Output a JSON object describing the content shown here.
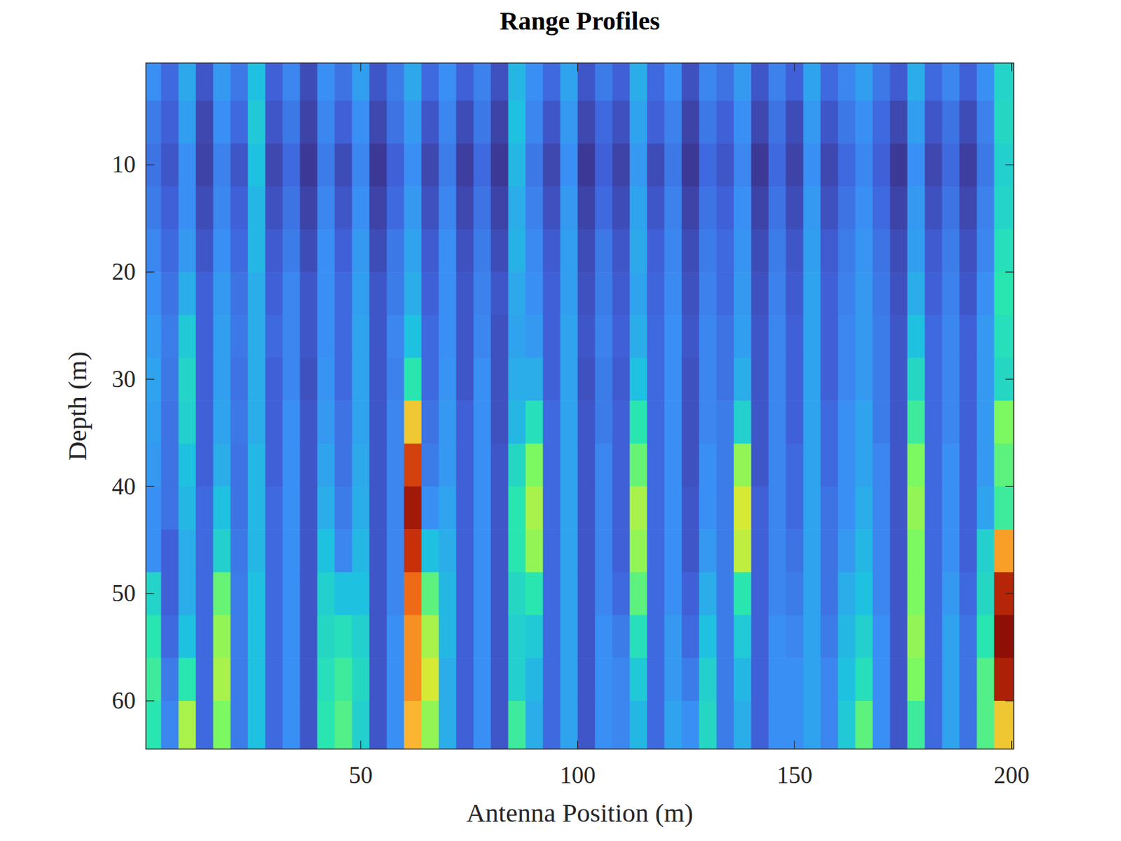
{
  "chart_data": {
    "type": "heatmap",
    "title": "Range Profiles",
    "x_label": "Antenna Position (m)",
    "y_label": "Depth (m)",
    "color": "turbo",
    "xlim": [
      0.5,
      200.5
    ],
    "ylim": [
      0.5,
      64.5
    ],
    "xticks": [
      50,
      100,
      150,
      200
    ],
    "yticks": [
      10,
      20,
      30,
      40,
      50,
      60
    ],
    "clim": [
      0,
      1
    ],
    "x": [
      2,
      6,
      10,
      14,
      18,
      22,
      26,
      30,
      34,
      38,
      42,
      46,
      50,
      54,
      58,
      62,
      66,
      70,
      74,
      78,
      82,
      86,
      90,
      94,
      98,
      102,
      106,
      110,
      114,
      118,
      122,
      126,
      130,
      134,
      138,
      142,
      146,
      150,
      154,
      158,
      162,
      166,
      170,
      174,
      178,
      182,
      186,
      190,
      194,
      198
    ],
    "y": [
      2,
      6,
      10,
      14,
      18,
      22,
      26,
      30,
      34,
      38,
      42,
      46,
      50,
      54,
      58,
      62
    ],
    "cells": [
      [
        0.3,
        0.22,
        0.35,
        0.18,
        0.32,
        0.25,
        0.4,
        0.2,
        0.28,
        0.16,
        0.3,
        0.24,
        0.33,
        0.18,
        0.26,
        0.35,
        0.22,
        0.3,
        0.2,
        0.27,
        0.17,
        0.38,
        0.3,
        0.22,
        0.34,
        0.18,
        0.26,
        0.2,
        0.36,
        0.22,
        0.3,
        0.17,
        0.28,
        0.24,
        0.32,
        0.18,
        0.27,
        0.2,
        0.34,
        0.22,
        0.28,
        0.33,
        0.25,
        0.19,
        0.36,
        0.22,
        0.28,
        0.2,
        0.3,
        0.45
      ],
      [
        0.26,
        0.2,
        0.33,
        0.15,
        0.3,
        0.22,
        0.42,
        0.18,
        0.25,
        0.14,
        0.28,
        0.2,
        0.3,
        0.15,
        0.24,
        0.32,
        0.18,
        0.28,
        0.16,
        0.25,
        0.14,
        0.4,
        0.28,
        0.18,
        0.32,
        0.15,
        0.22,
        0.17,
        0.34,
        0.2,
        0.27,
        0.14,
        0.25,
        0.2,
        0.3,
        0.15,
        0.24,
        0.16,
        0.32,
        0.18,
        0.25,
        0.3,
        0.22,
        0.15,
        0.33,
        0.18,
        0.24,
        0.16,
        0.27,
        0.46
      ],
      [
        0.24,
        0.18,
        0.3,
        0.14,
        0.27,
        0.18,
        0.4,
        0.15,
        0.22,
        0.12,
        0.26,
        0.16,
        0.28,
        0.12,
        0.2,
        0.3,
        0.15,
        0.26,
        0.13,
        0.22,
        0.12,
        0.38,
        0.25,
        0.15,
        0.3,
        0.12,
        0.2,
        0.14,
        0.32,
        0.16,
        0.25,
        0.12,
        0.22,
        0.18,
        0.28,
        0.12,
        0.22,
        0.14,
        0.3,
        0.15,
        0.22,
        0.28,
        0.2,
        0.12,
        0.3,
        0.15,
        0.22,
        0.13,
        0.25,
        0.44
      ],
      [
        0.26,
        0.2,
        0.3,
        0.16,
        0.28,
        0.2,
        0.38,
        0.17,
        0.24,
        0.14,
        0.28,
        0.18,
        0.3,
        0.14,
        0.22,
        0.32,
        0.17,
        0.28,
        0.15,
        0.24,
        0.14,
        0.36,
        0.27,
        0.17,
        0.32,
        0.14,
        0.22,
        0.16,
        0.34,
        0.18,
        0.27,
        0.14,
        0.24,
        0.2,
        0.3,
        0.14,
        0.24,
        0.16,
        0.32,
        0.17,
        0.24,
        0.3,
        0.22,
        0.14,
        0.32,
        0.17,
        0.24,
        0.15,
        0.27,
        0.45
      ],
      [
        0.28,
        0.22,
        0.32,
        0.18,
        0.3,
        0.22,
        0.38,
        0.19,
        0.26,
        0.16,
        0.3,
        0.2,
        0.32,
        0.16,
        0.25,
        0.34,
        0.19,
        0.3,
        0.17,
        0.26,
        0.16,
        0.37,
        0.29,
        0.19,
        0.33,
        0.16,
        0.25,
        0.18,
        0.35,
        0.2,
        0.28,
        0.16,
        0.26,
        0.22,
        0.31,
        0.16,
        0.26,
        0.18,
        0.33,
        0.19,
        0.26,
        0.31,
        0.24,
        0.16,
        0.33,
        0.19,
        0.26,
        0.17,
        0.28,
        0.48
      ],
      [
        0.3,
        0.24,
        0.36,
        0.2,
        0.32,
        0.24,
        0.36,
        0.2,
        0.28,
        0.18,
        0.3,
        0.22,
        0.33,
        0.18,
        0.26,
        0.36,
        0.2,
        0.3,
        0.18,
        0.27,
        0.18,
        0.35,
        0.3,
        0.2,
        0.33,
        0.17,
        0.26,
        0.19,
        0.34,
        0.21,
        0.29,
        0.17,
        0.27,
        0.22,
        0.32,
        0.17,
        0.27,
        0.19,
        0.34,
        0.2,
        0.27,
        0.32,
        0.25,
        0.17,
        0.36,
        0.2,
        0.27,
        0.18,
        0.3,
        0.5
      ],
      [
        0.32,
        0.26,
        0.42,
        0.2,
        0.33,
        0.25,
        0.36,
        0.22,
        0.28,
        0.18,
        0.3,
        0.22,
        0.34,
        0.18,
        0.28,
        0.4,
        0.22,
        0.3,
        0.18,
        0.28,
        0.17,
        0.34,
        0.32,
        0.2,
        0.34,
        0.18,
        0.27,
        0.2,
        0.36,
        0.22,
        0.3,
        0.18,
        0.28,
        0.24,
        0.33,
        0.18,
        0.28,
        0.2,
        0.34,
        0.2,
        0.28,
        0.32,
        0.26,
        0.18,
        0.4,
        0.22,
        0.28,
        0.2,
        0.32,
        0.48
      ],
      [
        0.34,
        0.25,
        0.45,
        0.2,
        0.33,
        0.24,
        0.36,
        0.2,
        0.28,
        0.17,
        0.31,
        0.22,
        0.34,
        0.18,
        0.27,
        0.5,
        0.22,
        0.31,
        0.18,
        0.3,
        0.17,
        0.36,
        0.36,
        0.2,
        0.34,
        0.17,
        0.26,
        0.19,
        0.4,
        0.22,
        0.3,
        0.17,
        0.28,
        0.24,
        0.36,
        0.18,
        0.28,
        0.2,
        0.34,
        0.2,
        0.28,
        0.32,
        0.26,
        0.18,
        0.46,
        0.22,
        0.28,
        0.2,
        0.32,
        0.46
      ],
      [
        0.33,
        0.24,
        0.44,
        0.2,
        0.34,
        0.25,
        0.36,
        0.2,
        0.3,
        0.18,
        0.32,
        0.24,
        0.34,
        0.18,
        0.28,
        0.72,
        0.24,
        0.32,
        0.2,
        0.3,
        0.17,
        0.38,
        0.48,
        0.22,
        0.34,
        0.18,
        0.26,
        0.2,
        0.5,
        0.22,
        0.3,
        0.17,
        0.28,
        0.26,
        0.44,
        0.18,
        0.28,
        0.2,
        0.34,
        0.22,
        0.3,
        0.34,
        0.26,
        0.18,
        0.52,
        0.22,
        0.28,
        0.2,
        0.32,
        0.58
      ],
      [
        0.32,
        0.24,
        0.4,
        0.2,
        0.36,
        0.24,
        0.38,
        0.2,
        0.3,
        0.18,
        0.34,
        0.24,
        0.35,
        0.18,
        0.28,
        0.9,
        0.26,
        0.32,
        0.2,
        0.3,
        0.18,
        0.46,
        0.58,
        0.22,
        0.34,
        0.18,
        0.28,
        0.2,
        0.56,
        0.22,
        0.3,
        0.17,
        0.3,
        0.26,
        0.6,
        0.18,
        0.28,
        0.22,
        0.34,
        0.22,
        0.3,
        0.34,
        0.28,
        0.18,
        0.58,
        0.22,
        0.3,
        0.2,
        0.32,
        0.55
      ],
      [
        0.3,
        0.24,
        0.38,
        0.22,
        0.4,
        0.24,
        0.38,
        0.22,
        0.3,
        0.18,
        0.36,
        0.26,
        0.36,
        0.18,
        0.28,
        0.96,
        0.3,
        0.34,
        0.2,
        0.3,
        0.18,
        0.5,
        0.62,
        0.22,
        0.34,
        0.18,
        0.28,
        0.2,
        0.62,
        0.22,
        0.3,
        0.18,
        0.3,
        0.26,
        0.66,
        0.2,
        0.28,
        0.22,
        0.34,
        0.24,
        0.3,
        0.36,
        0.28,
        0.18,
        0.6,
        0.22,
        0.3,
        0.2,
        0.34,
        0.52
      ],
      [
        0.3,
        0.2,
        0.36,
        0.22,
        0.44,
        0.25,
        0.38,
        0.22,
        0.3,
        0.18,
        0.4,
        0.28,
        0.38,
        0.18,
        0.28,
        0.92,
        0.4,
        0.36,
        0.2,
        0.3,
        0.18,
        0.5,
        0.6,
        0.22,
        0.34,
        0.18,
        0.28,
        0.2,
        0.6,
        0.22,
        0.3,
        0.18,
        0.32,
        0.26,
        0.64,
        0.2,
        0.28,
        0.24,
        0.34,
        0.24,
        0.32,
        0.38,
        0.28,
        0.18,
        0.58,
        0.22,
        0.3,
        0.2,
        0.44,
        0.78
      ],
      [
        0.45,
        0.2,
        0.36,
        0.22,
        0.56,
        0.26,
        0.4,
        0.22,
        0.3,
        0.18,
        0.44,
        0.4,
        0.4,
        0.18,
        0.28,
        0.85,
        0.55,
        0.38,
        0.2,
        0.3,
        0.18,
        0.46,
        0.5,
        0.22,
        0.34,
        0.18,
        0.28,
        0.22,
        0.55,
        0.22,
        0.3,
        0.2,
        0.36,
        0.26,
        0.5,
        0.2,
        0.28,
        0.26,
        0.34,
        0.24,
        0.36,
        0.4,
        0.28,
        0.18,
        0.58,
        0.22,
        0.32,
        0.22,
        0.46,
        0.94
      ],
      [
        0.5,
        0.22,
        0.4,
        0.22,
        0.6,
        0.26,
        0.4,
        0.22,
        0.3,
        0.18,
        0.46,
        0.48,
        0.44,
        0.18,
        0.3,
        0.8,
        0.62,
        0.38,
        0.2,
        0.3,
        0.18,
        0.44,
        0.42,
        0.22,
        0.34,
        0.18,
        0.3,
        0.26,
        0.48,
        0.22,
        0.32,
        0.22,
        0.4,
        0.26,
        0.42,
        0.2,
        0.3,
        0.28,
        0.34,
        0.26,
        0.38,
        0.44,
        0.3,
        0.18,
        0.6,
        0.22,
        0.34,
        0.24,
        0.5,
        0.98
      ],
      [
        0.52,
        0.26,
        0.5,
        0.22,
        0.62,
        0.26,
        0.4,
        0.22,
        0.3,
        0.18,
        0.48,
        0.52,
        0.46,
        0.18,
        0.3,
        0.8,
        0.66,
        0.36,
        0.2,
        0.3,
        0.18,
        0.44,
        0.38,
        0.22,
        0.34,
        0.18,
        0.3,
        0.28,
        0.42,
        0.22,
        0.32,
        0.26,
        0.44,
        0.26,
        0.38,
        0.2,
        0.3,
        0.3,
        0.34,
        0.28,
        0.4,
        0.48,
        0.3,
        0.18,
        0.58,
        0.22,
        0.34,
        0.24,
        0.54,
        0.95
      ],
      [
        0.5,
        0.28,
        0.62,
        0.22,
        0.58,
        0.26,
        0.4,
        0.22,
        0.3,
        0.18,
        0.5,
        0.54,
        0.44,
        0.18,
        0.3,
        0.75,
        0.6,
        0.36,
        0.2,
        0.3,
        0.18,
        0.52,
        0.36,
        0.22,
        0.34,
        0.18,
        0.3,
        0.28,
        0.38,
        0.22,
        0.34,
        0.3,
        0.46,
        0.26,
        0.36,
        0.2,
        0.3,
        0.3,
        0.34,
        0.28,
        0.42,
        0.55,
        0.3,
        0.18,
        0.52,
        0.22,
        0.34,
        0.24,
        0.54,
        0.72
      ]
    ]
  }
}
